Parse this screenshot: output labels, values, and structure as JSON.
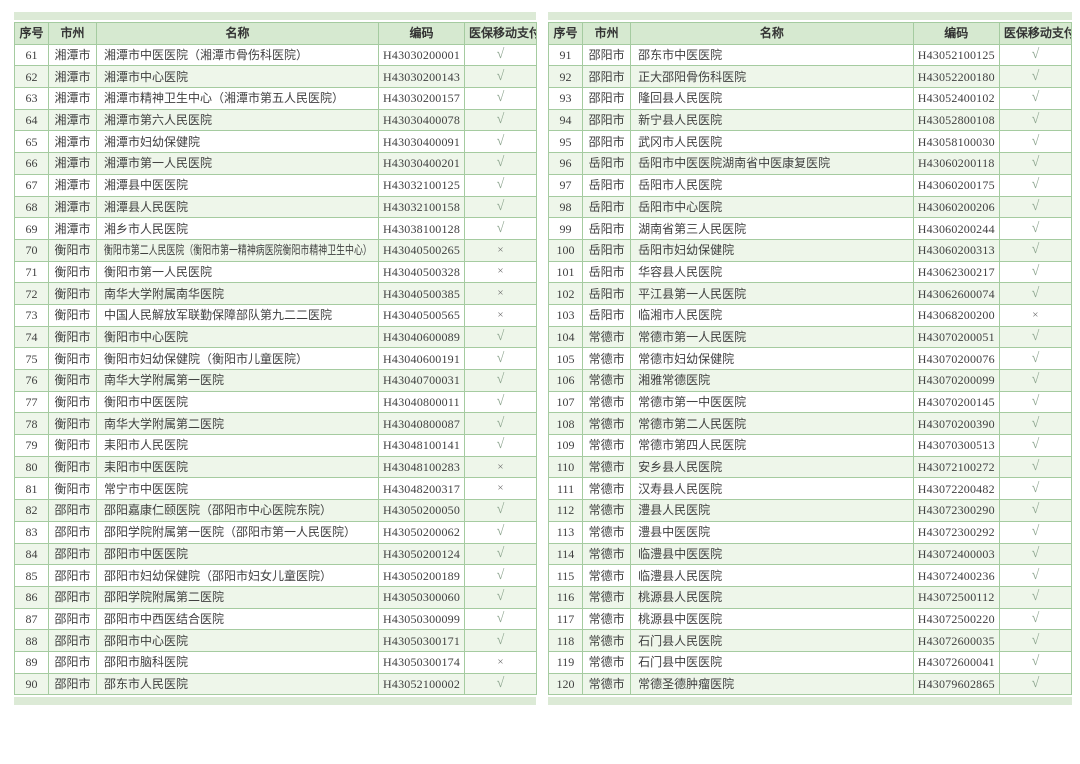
{
  "columns": [
    "序号",
    "市州",
    "名称",
    "编码",
    "医保移动支付"
  ],
  "marks": {
    "supported": "√",
    "unsupported": "×"
  },
  "colors": {
    "header_bg": "#d6e9d0",
    "row_alt_bg": "#eef6ea",
    "border": "#a5cba0",
    "outer_band": "#dcead6",
    "check": "#8da58f",
    "cross": "#6e6e6e"
  },
  "tables": [
    {
      "rows": [
        [
          "61",
          "湘潭市",
          "湘潭市中医医院（湘潭市骨伤科医院）",
          "H43030200001",
          "√"
        ],
        [
          "62",
          "湘潭市",
          "湘潭市中心医院",
          "H43030200143",
          "√"
        ],
        [
          "63",
          "湘潭市",
          "湘潭市精神卫生中心（湘潭市第五人民医院）",
          "H43030200157",
          "√"
        ],
        [
          "64",
          "湘潭市",
          "湘潭市第六人民医院",
          "H43030400078",
          "√"
        ],
        [
          "65",
          "湘潭市",
          "湘潭市妇幼保健院",
          "H43030400091",
          "√"
        ],
        [
          "66",
          "湘潭市",
          "湘潭市第一人民医院",
          "H43030400201",
          "√"
        ],
        [
          "67",
          "湘潭市",
          "湘潭县中医医院",
          "H43032100125",
          "√"
        ],
        [
          "68",
          "湘潭市",
          "湘潭县人民医院",
          "H43032100158",
          "√"
        ],
        [
          "69",
          "湘潭市",
          "湘乡市人民医院",
          "H43038100128",
          "√"
        ],
        [
          "70",
          "衡阳市",
          "衡阳市第二人民医院（衡阳市第一精神病医院衡阳市精神卫生中心）",
          "H43040500265",
          "×"
        ],
        [
          "71",
          "衡阳市",
          "衡阳市第一人民医院",
          "H43040500328",
          "×"
        ],
        [
          "72",
          "衡阳市",
          "南华大学附属南华医院",
          "H43040500385",
          "×"
        ],
        [
          "73",
          "衡阳市",
          "中国人民解放军联勤保障部队第九二二医院",
          "H43040500565",
          "×"
        ],
        [
          "74",
          "衡阳市",
          "衡阳市中心医院",
          "H43040600089",
          "√"
        ],
        [
          "75",
          "衡阳市",
          "衡阳市妇幼保健院（衡阳市儿童医院）",
          "H43040600191",
          "√"
        ],
        [
          "76",
          "衡阳市",
          "南华大学附属第一医院",
          "H43040700031",
          "√"
        ],
        [
          "77",
          "衡阳市",
          "衡阳市中医医院",
          "H43040800011",
          "√"
        ],
        [
          "78",
          "衡阳市",
          "南华大学附属第二医院",
          "H43040800087",
          "√"
        ],
        [
          "79",
          "衡阳市",
          "耒阳市人民医院",
          "H43048100141",
          "√"
        ],
        [
          "80",
          "衡阳市",
          "耒阳市中医医院",
          "H43048100283",
          "×"
        ],
        [
          "81",
          "衡阳市",
          "常宁市中医医院",
          "H43048200317",
          "×"
        ],
        [
          "82",
          "邵阳市",
          "邵阳嘉康仁颐医院（邵阳市中心医院东院）",
          "H43050200050",
          "√"
        ],
        [
          "83",
          "邵阳市",
          "邵阳学院附属第一医院（邵阳市第一人民医院）",
          "H43050200062",
          "√"
        ],
        [
          "84",
          "邵阳市",
          "邵阳市中医医院",
          "H43050200124",
          "√"
        ],
        [
          "85",
          "邵阳市",
          "邵阳市妇幼保健院（邵阳市妇女儿童医院）",
          "H43050200189",
          "√"
        ],
        [
          "86",
          "邵阳市",
          "邵阳学院附属第二医院",
          "H43050300060",
          "√"
        ],
        [
          "87",
          "邵阳市",
          "邵阳市中西医结合医院",
          "H43050300099",
          "√"
        ],
        [
          "88",
          "邵阳市",
          "邵阳市中心医院",
          "H43050300171",
          "√"
        ],
        [
          "89",
          "邵阳市",
          "邵阳市脑科医院",
          "H43050300174",
          "×"
        ],
        [
          "90",
          "邵阳市",
          "邵东市人民医院",
          "H43052100002",
          "√"
        ]
      ]
    },
    {
      "rows": [
        [
          "91",
          "邵阳市",
          "邵东市中医医院",
          "H43052100125",
          "√"
        ],
        [
          "92",
          "邵阳市",
          "正大邵阳骨伤科医院",
          "H43052200180",
          "√"
        ],
        [
          "93",
          "邵阳市",
          "隆回县人民医院",
          "H43052400102",
          "√"
        ],
        [
          "94",
          "邵阳市",
          "新宁县人民医院",
          "H43052800108",
          "√"
        ],
        [
          "95",
          "邵阳市",
          "武冈市人民医院",
          "H43058100030",
          "√"
        ],
        [
          "96",
          "岳阳市",
          "岳阳市中医医院湖南省中医康复医院",
          "H43060200118",
          "√"
        ],
        [
          "97",
          "岳阳市",
          "岳阳市人民医院",
          "H43060200175",
          "√"
        ],
        [
          "98",
          "岳阳市",
          "岳阳市中心医院",
          "H43060200206",
          "√"
        ],
        [
          "99",
          "岳阳市",
          "湖南省第三人民医院",
          "H43060200244",
          "√"
        ],
        [
          "100",
          "岳阳市",
          "岳阳市妇幼保健院",
          "H43060200313",
          "√"
        ],
        [
          "101",
          "岳阳市",
          "华容县人民医院",
          "H43062300217",
          "√"
        ],
        [
          "102",
          "岳阳市",
          "平江县第一人民医院",
          "H43062600074",
          "√"
        ],
        [
          "103",
          "岳阳市",
          "临湘市人民医院",
          "H43068200200",
          "×"
        ],
        [
          "104",
          "常德市",
          "常德市第一人民医院",
          "H43070200051",
          "√"
        ],
        [
          "105",
          "常德市",
          "常德市妇幼保健院",
          "H43070200076",
          "√"
        ],
        [
          "106",
          "常德市",
          "湘雅常德医院",
          "H43070200099",
          "√"
        ],
        [
          "107",
          "常德市",
          "常德市第一中医医院",
          "H43070200145",
          "√"
        ],
        [
          "108",
          "常德市",
          "常德市第二人民医院",
          "H43070200390",
          "√"
        ],
        [
          "109",
          "常德市",
          "常德市第四人民医院",
          "H43070300513",
          "√"
        ],
        [
          "110",
          "常德市",
          "安乡县人民医院",
          "H43072100272",
          "√"
        ],
        [
          "111",
          "常德市",
          "汉寿县人民医院",
          "H43072200482",
          "√"
        ],
        [
          "112",
          "常德市",
          "澧县人民医院",
          "H43072300290",
          "√"
        ],
        [
          "113",
          "常德市",
          "澧县中医医院",
          "H43072300292",
          "√"
        ],
        [
          "114",
          "常德市",
          "临澧县中医医院",
          "H43072400003",
          "√"
        ],
        [
          "115",
          "常德市",
          "临澧县人民医院",
          "H43072400236",
          "√"
        ],
        [
          "116",
          "常德市",
          "桃源县人民医院",
          "H43072500112",
          "√"
        ],
        [
          "117",
          "常德市",
          "桃源县中医医院",
          "H43072500220",
          "√"
        ],
        [
          "118",
          "常德市",
          "石门县人民医院",
          "H43072600035",
          "√"
        ],
        [
          "119",
          "常德市",
          "石门县中医医院",
          "H43072600041",
          "√"
        ],
        [
          "120",
          "常德市",
          "常德圣德肿瘤医院",
          "H43079602865",
          "√"
        ]
      ]
    }
  ]
}
